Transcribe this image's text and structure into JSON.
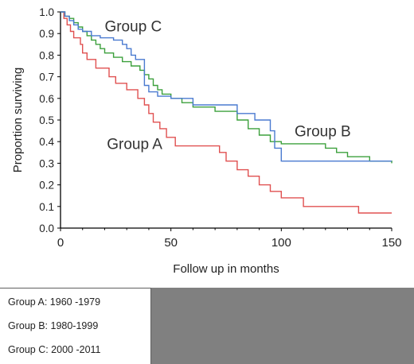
{
  "chart_data": {
    "type": "line",
    "step": true,
    "xlabel": "Follow up in months",
    "ylabel": "Proportion surviving",
    "xlim": [
      0,
      150
    ],
    "ylim": [
      0,
      1.0
    ],
    "x_ticks": [
      0,
      50,
      100,
      150
    ],
    "y_ticks": [
      0.0,
      0.1,
      0.2,
      0.3,
      0.4,
      0.5,
      0.6,
      0.7,
      0.8,
      0.9,
      1.0
    ],
    "grid": false,
    "series": [
      {
        "name": "Group A",
        "color": "#e05050",
        "x": [
          0,
          1.5,
          3,
          4.5,
          6,
          9,
          10,
          12,
          16,
          22,
          25,
          30,
          35,
          38,
          40,
          42,
          45,
          48,
          52,
          58,
          65,
          72,
          75,
          80,
          85,
          90,
          95,
          100,
          110,
          122,
          135,
          150
        ],
        "y": [
          1.0,
          0.97,
          0.94,
          0.91,
          0.88,
          0.85,
          0.81,
          0.78,
          0.74,
          0.7,
          0.67,
          0.64,
          0.6,
          0.57,
          0.53,
          0.49,
          0.46,
          0.42,
          0.38,
          0.38,
          0.38,
          0.35,
          0.31,
          0.27,
          0.24,
          0.2,
          0.17,
          0.14,
          0.1,
          0.1,
          0.07,
          0.07
        ]
      },
      {
        "name": "Group B",
        "color": "#3ca03c",
        "x": [
          0,
          2,
          4,
          6,
          8,
          10,
          12,
          14,
          16,
          18,
          20,
          24,
          28,
          32,
          36,
          38,
          40,
          42,
          44,
          46,
          50,
          55,
          60,
          70,
          80,
          85,
          90,
          95,
          100,
          110,
          120,
          125,
          130,
          140,
          150
        ],
        "y": [
          1.0,
          0.98,
          0.97,
          0.95,
          0.93,
          0.91,
          0.89,
          0.87,
          0.85,
          0.83,
          0.81,
          0.79,
          0.77,
          0.75,
          0.73,
          0.71,
          0.69,
          0.66,
          0.64,
          0.62,
          0.6,
          0.58,
          0.56,
          0.54,
          0.5,
          0.46,
          0.43,
          0.4,
          0.39,
          0.39,
          0.37,
          0.35,
          0.33,
          0.31,
          0.3
        ]
      },
      {
        "name": "Group C",
        "color": "#4a7ad0",
        "x": [
          0,
          2,
          4,
          6,
          8,
          10,
          14,
          18,
          24,
          28,
          30,
          32,
          34,
          38,
          40,
          44,
          50,
          60,
          70,
          80,
          88,
          95,
          97,
          100,
          140,
          150
        ],
        "y": [
          1.0,
          0.98,
          0.96,
          0.94,
          0.92,
          0.91,
          0.89,
          0.88,
          0.87,
          0.85,
          0.83,
          0.8,
          0.78,
          0.66,
          0.63,
          0.61,
          0.6,
          0.57,
          0.57,
          0.53,
          0.5,
          0.45,
          0.37,
          0.31,
          0.31,
          0.31
        ]
      }
    ],
    "annotations": [
      {
        "text": "Group C",
        "x": 20,
        "y": 0.91
      },
      {
        "text": "Group B",
        "x": 106,
        "y": 0.425
      },
      {
        "text": "Group A",
        "x": 21,
        "y": 0.365
      }
    ]
  },
  "legend": {
    "lines": [
      "Group A: 1960 -1979",
      "Group B: 1980-1999",
      "Group C: 2000 -2011"
    ]
  }
}
